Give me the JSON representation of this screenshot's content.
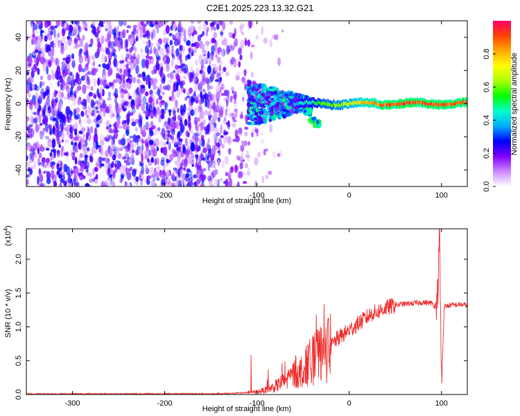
{
  "title": "C2E1.2025.223.13.32.G21",
  "colors": {
    "snr_line": "#ee2b2b",
    "spectrogram_low": "#7a1ee6",
    "colormap": [
      "#ffffff",
      "#cc88ff",
      "#8000ff",
      "#0000ff",
      "#00aaff",
      "#00ffcc",
      "#00ff00",
      "#aaff00",
      "#ffff00",
      "#ffaa00",
      "#ff4400",
      "#ff0066"
    ]
  },
  "chart_data": [
    {
      "type": "heatmap",
      "title": "",
      "xlabel": "Height of straight line (km)",
      "ylabel": "Frequency (Hz)",
      "xlim": [
        -350,
        128
      ],
      "ylim": [
        -50,
        50
      ],
      "x_ticks": [
        -300,
        -200,
        -100,
        0,
        100
      ],
      "x_tick_labels": [
        "-300",
        "-200",
        "-100",
        "0",
        "100"
      ],
      "y_ticks": [
        -40,
        -20,
        0,
        20,
        40
      ],
      "y_tick_labels": [
        "-40",
        "-20",
        "0",
        "20",
        "40"
      ],
      "colorbar": {
        "label": "Normalized spectral amplitude",
        "range": [
          0,
          1
        ],
        "ticks": [
          0.0,
          0.2,
          0.4,
          0.6,
          0.8
        ],
        "tick_labels": [
          "0.0",
          "0.2",
          "0.4",
          "0.6",
          "0.8"
        ]
      },
      "features": {
        "noise_region_x": [
          -350,
          -100
        ],
        "signal_center_hz": 0,
        "signal_start_x": -100,
        "signal_strong_x": [
          -60,
          128
        ],
        "branch_points": [
          [
            -45,
            -5
          ],
          [
            -40,
            -10
          ],
          [
            -35,
            -12
          ]
        ]
      }
    },
    {
      "type": "line",
      "title": "",
      "xlabel": "Height of straight line (km)",
      "ylabel": "SNR (10 * v/v)",
      "y_scale_note": "(x10",
      "y_scale_exponent": "4",
      "xlim": [
        -350,
        128
      ],
      "ylim": [
        0,
        2.45
      ],
      "x_ticks": [
        -300,
        -200,
        -100,
        0,
        100
      ],
      "x_tick_labels": [
        "-300",
        "-200",
        "-100",
        "0",
        "100"
      ],
      "y_ticks": [
        0.0,
        0.5,
        1.0,
        1.5,
        2.0
      ],
      "y_tick_labels": [
        "0.0",
        "0.5",
        "1.0",
        "1.5",
        "2.0"
      ],
      "series": [
        {
          "x": [
            -350,
            -300,
            -250,
            -200,
            -150,
            -120,
            -100,
            -90,
            -80,
            -70,
            -60,
            -50,
            -45,
            -40,
            -35,
            -30,
            -25,
            -20,
            -15,
            -10,
            -5,
            0,
            5,
            10,
            15,
            20,
            25,
            30,
            35,
            40,
            45,
            50,
            55,
            60,
            70,
            80,
            90,
            93,
            96,
            98,
            100,
            103,
            110,
            120,
            128
          ],
          "y": [
            0.01,
            0.01,
            0.01,
            0.01,
            0.01,
            0.02,
            0.04,
            0.07,
            0.12,
            0.2,
            0.3,
            0.35,
            0.45,
            0.5,
            0.55,
            0.6,
            0.65,
            0.7,
            0.8,
            0.85,
            0.9,
            0.95,
            1.0,
            1.05,
            1.1,
            1.15,
            1.2,
            1.22,
            1.25,
            1.28,
            1.3,
            1.32,
            1.33,
            1.34,
            1.35,
            1.36,
            1.35,
            1.3,
            1.5,
            2.4,
            0.1,
            1.3,
            1.32,
            1.33,
            1.32
          ]
        }
      ]
    }
  ]
}
